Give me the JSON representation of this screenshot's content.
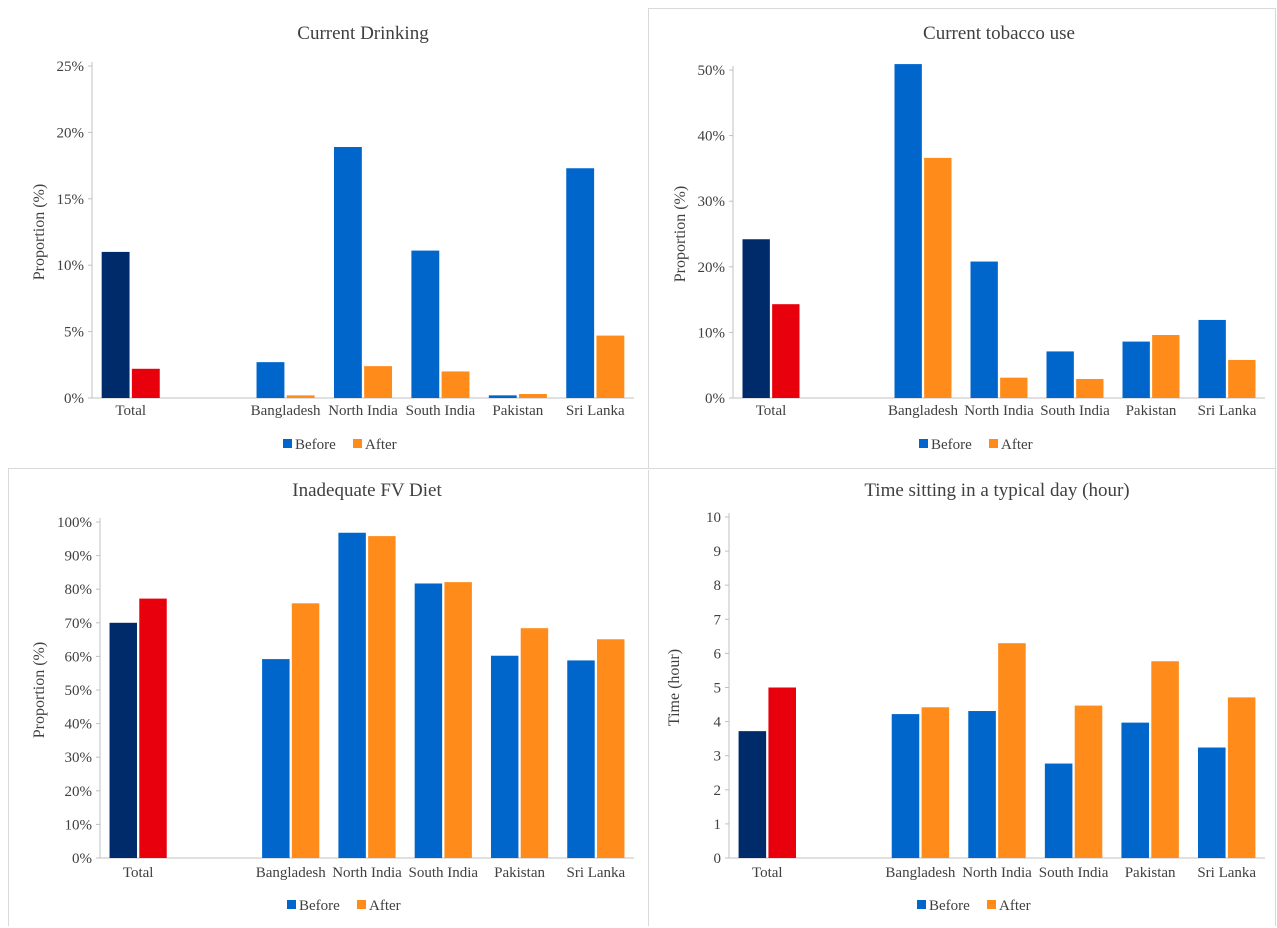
{
  "colors": {
    "before": "#0066CC",
    "after": "#FF8C1A",
    "total_before": "#002B6B",
    "total_after": "#E8000D",
    "axis": "#c0c0c0",
    "text": "#404040"
  },
  "legend": {
    "before": "Before",
    "after": "After"
  },
  "chart_data": [
    {
      "type": "bar",
      "title": "Current Drinking",
      "ylabel": "Proportion (%)",
      "xlabel": "",
      "categories": [
        "Total",
        "",
        "Bangladesh",
        "North India",
        "South India",
        "Pakistan",
        "Sri Lanka"
      ],
      "series": [
        {
          "name": "Before",
          "values": [
            11.0,
            null,
            2.7,
            18.9,
            11.1,
            0.2,
            17.3
          ]
        },
        {
          "name": "After",
          "values": [
            2.2,
            null,
            0.2,
            2.4,
            2.0,
            0.3,
            4.7
          ]
        }
      ],
      "ylim": [
        0,
        25
      ],
      "yticks": [
        "0%",
        "5%",
        "10%",
        "15%",
        "20%",
        "25%"
      ],
      "grid": false,
      "legend_position": "bottom"
    },
    {
      "type": "bar",
      "title": "Current tobacco use",
      "ylabel": "Proportion (%)",
      "xlabel": "",
      "categories": [
        "Total",
        "",
        "Bangladesh",
        "North India",
        "South India",
        "Pakistan",
        "Sri Lanka"
      ],
      "series": [
        {
          "name": "Before",
          "values": [
            24.2,
            null,
            50.9,
            20.8,
            7.1,
            8.6,
            11.9
          ]
        },
        {
          "name": "After",
          "values": [
            14.3,
            null,
            36.6,
            3.1,
            2.9,
            9.6,
            5.8
          ]
        }
      ],
      "ylim": [
        0,
        50
      ],
      "yticks": [
        "0%",
        "10%",
        "20%",
        "30%",
        "40%",
        "50%"
      ],
      "grid": false,
      "legend_position": "bottom"
    },
    {
      "type": "bar",
      "title": "Inadequate FV Diet",
      "ylabel": "Proportion (%)",
      "xlabel": "",
      "categories": [
        "Total",
        "",
        "Bangladesh",
        "North India",
        "South India",
        "Pakistan",
        "Sri Lanka"
      ],
      "series": [
        {
          "name": "Before",
          "values": [
            70.0,
            null,
            59.2,
            96.8,
            81.7,
            60.2,
            58.8
          ]
        },
        {
          "name": "After",
          "values": [
            77.2,
            null,
            75.8,
            95.8,
            82.1,
            68.4,
            65.1
          ]
        }
      ],
      "ylim": [
        0,
        100
      ],
      "yticks": [
        "0%",
        "10%",
        "20%",
        "30%",
        "40%",
        "50%",
        "60%",
        "70%",
        "80%",
        "90%",
        "100%"
      ],
      "grid": false,
      "legend_position": "bottom"
    },
    {
      "type": "bar",
      "title": "Time sitting in a typical day (hour)",
      "ylabel": "Time (hour)",
      "xlabel": "",
      "categories": [
        "Total",
        "",
        "Bangladesh",
        "North India",
        "South India",
        "Pakistan",
        "Sri Lanka"
      ],
      "series": [
        {
          "name": "Before",
          "values": [
            3.72,
            null,
            4.22,
            4.31,
            2.77,
            3.97,
            3.24
          ]
        },
        {
          "name": "After",
          "values": [
            5.0,
            null,
            4.42,
            6.3,
            4.47,
            5.77,
            4.71
          ]
        }
      ],
      "ylim": [
        0,
        10
      ],
      "yticks": [
        "0",
        "1",
        "2",
        "3",
        "4",
        "5",
        "6",
        "7",
        "8",
        "9",
        "10"
      ],
      "grid": false,
      "legend_position": "bottom"
    }
  ]
}
